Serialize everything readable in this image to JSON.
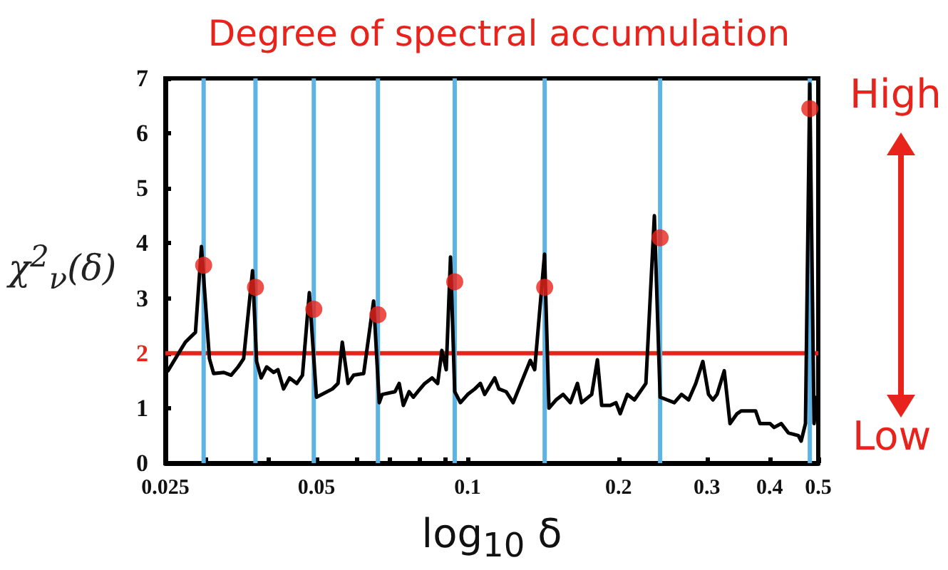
{
  "chart_data": {
    "type": "line",
    "title": "Degree of spectral accumulation",
    "xlabel": "log$_{10}$ δ",
    "ylabel": "χ$^{2}$$_{ν}$(δ)",
    "log": "x",
    "grid": false,
    "xlim": [
      0.025,
      0.5
    ],
    "xticks": [
      0.025,
      {
        "value": 0.03,
        "label": null
      },
      {
        "value": 0.04,
        "label": null
      },
      0.05,
      {
        "value": 0.06,
        "label": null
      },
      {
        "value": 0.07,
        "label": null
      },
      {
        "value": 0.08,
        "label": null
      },
      {
        "value": 0.09,
        "label": null
      },
      0.1,
      0.2,
      0.3,
      0.4,
      0.5
    ],
    "ylim": [
      0,
      7
    ],
    "yticks": [
      0,
      1,
      2,
      3,
      4,
      5,
      6,
      7
    ],
    "series": [
      {
        "color": "#000000",
        "marker": "none",
        "line_style": "solid",
        "x": [
          0.0253,
          0.0274,
          0.0287,
          0.0295,
          0.0306,
          0.0312,
          0.0327,
          0.0338,
          0.0349,
          0.0358,
          0.0373,
          0.038,
          0.0388,
          0.0398,
          0.0411,
          0.0419,
          0.043,
          0.0442,
          0.0457,
          0.0469,
          0.0484,
          0.05,
          0.0538,
          0.0552,
          0.0563,
          0.0578,
          0.0593,
          0.0621,
          0.065,
          0.0667,
          0.0676,
          0.0717,
          0.0731,
          0.0745,
          0.0765,
          0.078,
          0.0796,
          0.0822,
          0.085,
          0.0872,
          0.0889,
          0.0907,
          0.0925,
          0.0943,
          0.0968,
          0.1001,
          0.1034,
          0.1061,
          0.1082,
          0.1133,
          0.1155,
          0.1194,
          0.1233,
          0.1334,
          0.1361,
          0.1424,
          0.1453,
          0.1501,
          0.1551,
          0.1603,
          0.1656,
          0.1688,
          0.1768,
          0.1815,
          0.1851,
          0.1925,
          0.1976,
          0.2015,
          0.2082,
          0.2151,
          0.2267,
          0.2357,
          0.242,
          0.25,
          0.2583,
          0.2669,
          0.2758,
          0.285,
          0.2944,
          0.3022,
          0.3083,
          0.3143,
          0.3248,
          0.3335,
          0.3445,
          0.3513,
          0.3751,
          0.3826,
          0.4005,
          0.4083,
          0.4219,
          0.4359,
          0.4563,
          0.4622,
          0.4715,
          0.4808,
          0.4904,
          0.4968,
          0.5
        ],
        "values": [
          1.68,
          2.2,
          2.38,
          3.94,
          1.9,
          1.63,
          1.65,
          1.6,
          1.75,
          1.9,
          3.5,
          1.85,
          1.55,
          1.75,
          1.65,
          1.7,
          1.35,
          1.55,
          1.45,
          1.6,
          3.1,
          1.2,
          1.35,
          1.45,
          2.2,
          1.45,
          1.6,
          1.63,
          2.95,
          1.1,
          1.25,
          1.3,
          1.45,
          1.05,
          1.3,
          1.2,
          1.3,
          1.45,
          1.55,
          1.45,
          2.05,
          1.7,
          3.75,
          1.3,
          1.1,
          1.25,
          1.35,
          1.45,
          1.25,
          1.55,
          1.35,
          1.3,
          1.1,
          1.87,
          1.7,
          3.8,
          1.0,
          1.15,
          1.25,
          1.1,
          1.45,
          1.1,
          1.25,
          1.88,
          1.05,
          1.05,
          1.1,
          0.9,
          1.25,
          1.15,
          1.45,
          4.5,
          1.2,
          1.15,
          1.1,
          1.25,
          1.15,
          1.45,
          1.85,
          1.25,
          1.15,
          1.25,
          1.68,
          0.72,
          0.9,
          0.95,
          0.95,
          0.72,
          0.72,
          0.65,
          0.72,
          0.55,
          0.5,
          0.4,
          0.72,
          6.9,
          0.72,
          1.2,
          1.0
        ]
      },
      {
        "type": "scatter",
        "color": "#e8231c",
        "marker": "circle",
        "x": [
          0.0298,
          0.0378,
          0.0494,
          0.0663,
          0.0943,
          0.1425,
          0.242,
          0.481
        ],
        "values": [
          3.6,
          3.2,
          2.8,
          2.7,
          3.3,
          3.2,
          4.1,
          6.45
        ]
      }
    ],
    "ref_lines": [
      {
        "axis": "y",
        "value": 2,
        "color": "#e8231c"
      },
      {
        "axis": "x",
        "value": 0.0298,
        "color": "#5bb4e5"
      },
      {
        "axis": "x",
        "value": 0.0378,
        "color": "#5bb4e5"
      },
      {
        "axis": "x",
        "value": 0.0494,
        "color": "#5bb4e5"
      },
      {
        "axis": "x",
        "value": 0.0663,
        "color": "#5bb4e5"
      },
      {
        "axis": "x",
        "value": 0.0943,
        "color": "#5bb4e5"
      },
      {
        "axis": "x",
        "value": 0.1425,
        "color": "#5bb4e5"
      },
      {
        "axis": "x",
        "value": 0.242,
        "color": "#5bb4e5"
      },
      {
        "axis": "x",
        "value": 0.481,
        "color": "#5bb4e5"
      }
    ],
    "annotations": [
      "High",
      "Low"
    ]
  }
}
